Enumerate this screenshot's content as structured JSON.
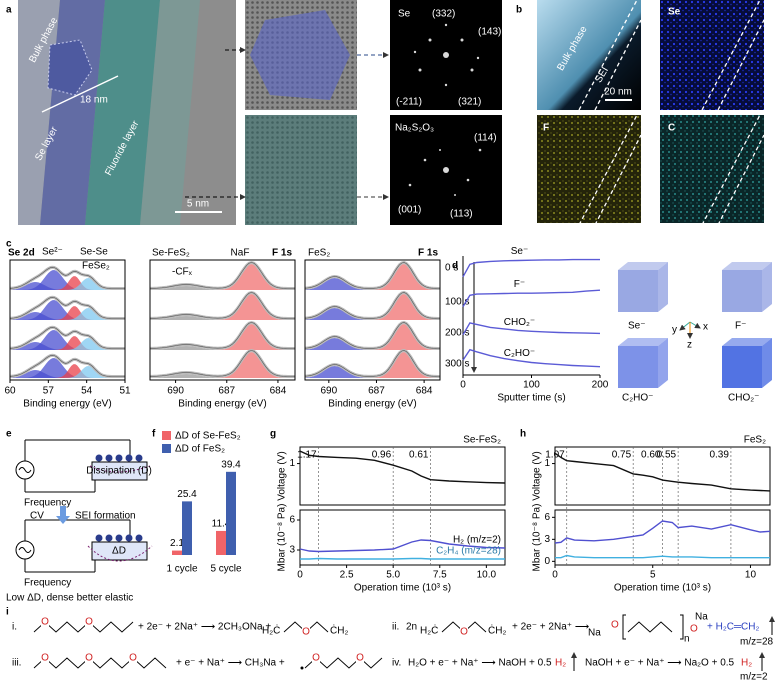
{
  "figure": {
    "panel_labels": [
      "a",
      "b",
      "c",
      "d",
      "e",
      "f",
      "g",
      "h",
      "i"
    ],
    "a": {
      "bulk": "Bulk phase",
      "width": "18 nm",
      "se_layer": "Se layer",
      "f_layer": "Fluoride layer",
      "scale": "5 nm",
      "fft_se": {
        "title": "Se",
        "spots": [
          "(332)",
          "(143)",
          "(-211)",
          "(321)"
        ]
      },
      "fft_na": {
        "title": "Na₂S₂O₃",
        "spots": [
          "(114)",
          "(001)",
          "(113)"
        ]
      }
    },
    "b": {
      "bulk": "Bulk phase",
      "sei": "SEI",
      "scale": "20 nm",
      "maps": [
        "Se",
        "F",
        "C"
      ]
    },
    "c": {
      "se_title": "Se 2d",
      "se_peaks": [
        "Se²⁻",
        "Se-Se",
        "FeSe₂"
      ],
      "sample_1": "Se-FeS₂",
      "naf": "NaF",
      "f1s": "F 1s",
      "cfx": "-CFₓ",
      "sample_2": "FeS₂",
      "times": [
        "0 s",
        "100 s",
        "200 s",
        "300 s"
      ],
      "xlabel": "Binding energy (eV)",
      "axes": [
        {
          "xlim": [
            60,
            51
          ],
          "xticks": [
            60,
            57,
            54,
            51
          ]
        },
        {
          "xlim": [
            691.5,
            683
          ],
          "xticks": [
            690,
            687,
            684
          ]
        },
        {
          "xlim": [
            691.5,
            683
          ],
          "xticks": [
            690,
            687,
            684
          ]
        }
      ]
    },
    "d_cubes": {
      "labels": [
        "Se⁻",
        "F⁻",
        "C₂HO⁻",
        "CHO₂⁻"
      ],
      "axes": [
        "x",
        "y",
        "z"
      ]
    },
    "e": {
      "frequency": "Frequency",
      "dissipation": "Dissipation (D)",
      "cv": "CV",
      "sei": "SEI formation",
      "delta": "ΔD",
      "note": "Low ΔD, dense better elastic"
    },
    "i": {
      "oxygen": "O",
      "r1": {
        "num": "i.",
        "mid": "+ 2e⁻ + 2Na⁺ ⟶ 2CH₃ONa +",
        "rad_l": "H₂Ċ",
        "rad_r": "ĊH₂"
      },
      "r2": {
        "num": "ii.",
        "coef": "2n",
        "mid": "+ 2e⁻ + 2Na⁺ ⟶",
        "na": "Na",
        "n": "n",
        "gas": "+ H₂C═CH₂",
        "mz": "m/z=28"
      },
      "r3": {
        "num": "iii.",
        "mid": "+ e⁻ + Na⁺ ⟶ CH₃Na +"
      },
      "r4": {
        "num": "iv.",
        "eq1": "H₂O + e⁻ + Na⁺ ⟶ NaOH + 0.5",
        "h2": "H₂",
        "eq2": "NaOH + e⁻ + Na⁺ ⟶ Na₂O + 0.5",
        "mz": "m/z=2"
      }
    }
  },
  "chart_data": [
    {
      "type": "line",
      "x": [
        0,
        10,
        20,
        40,
        60,
        80,
        100,
        120,
        140,
        160,
        180,
        200
      ],
      "xlim": [
        0,
        200
      ],
      "xticks": [
        0,
        100,
        200
      ],
      "xlabel": "Sputter time (s)",
      "ylim": [
        0,
        4
      ],
      "series": [
        {
          "name": "Se⁻",
          "color": "#5b5bd6",
          "values": [
            3.3,
            3.72,
            3.78,
            3.82,
            3.84,
            3.85,
            3.86,
            3.87,
            3.87,
            3.88,
            3.88,
            3.88
          ]
        },
        {
          "name": "F⁻",
          "color": "#5b5bd6",
          "values": [
            2.3,
            2.68,
            2.72,
            2.73,
            2.74,
            2.75,
            2.75,
            2.76,
            2.77,
            2.78,
            2.82,
            2.85
          ]
        },
        {
          "name": "CHO₂⁻",
          "color": "#5b5bd6",
          "values": [
            1.35,
            1.75,
            1.7,
            1.6,
            1.55,
            1.5,
            1.47,
            1.45,
            1.43,
            1.42,
            1.41,
            1.4
          ]
        },
        {
          "name": "C₂HO⁻",
          "color": "#5b5bd6",
          "values": [
            0.5,
            0.85,
            0.78,
            0.65,
            0.55,
            0.48,
            0.42,
            0.38,
            0.35,
            0.32,
            0.3,
            0.28
          ]
        }
      ]
    },
    {
      "type": "bar",
      "categories": [
        "1 cycle",
        "5 cycle"
      ],
      "ylim": [
        0,
        45
      ],
      "series": [
        {
          "name": "ΔD of Se-FeS₂",
          "color": "#f06468",
          "values": [
            2.1,
            11.4
          ]
        },
        {
          "name": "ΔD of FeS₂",
          "color": "#3f5fae",
          "values": [
            25.4,
            39.4
          ]
        }
      ]
    },
    {
      "type": "line",
      "title": "Se-FeS₂",
      "x": [
        0,
        0.5,
        1,
        2,
        3,
        4,
        5,
        6,
        6.5,
        7,
        8,
        9,
        10,
        11
      ],
      "xlim": [
        0,
        11
      ],
      "xticks": [
        0,
        2.5,
        {
          "value": 5,
          "label": "5.0"
        },
        7.5,
        {
          "value": 10,
          "label": "10.0"
        }
      ],
      "xlabel": "Operation time (10³ s)",
      "ylim": [
        0,
        1.4
      ],
      "yticks": [
        1
      ],
      "ylabel": "Voltage (V)",
      "y2lim": [
        1.5,
        7
      ],
      "y2ticks": [
        3,
        6
      ],
      "y2label": "Mbar (10⁻⁸ Pa)",
      "markers_x": [
        1,
        5,
        7
      ],
      "marker_values": [
        1.17,
        0.96,
        0.61
      ],
      "series": [
        {
          "color": "#111111",
          "values": [
            1.3,
            1.2,
            1.17,
            1.15,
            1.13,
            1.08,
            0.96,
            0.82,
            0.7,
            0.61,
            0.58,
            0.56,
            0.54,
            0.53
          ]
        },
        {
          "name": "H₂ (m/z=2)",
          "axis": "y2",
          "color": "#5050d0",
          "values": [
            3.1,
            2.9,
            2.85,
            2.9,
            2.95,
            3.0,
            3.1,
            3.8,
            4.0,
            3.95,
            3.6,
            3.4,
            3.25,
            3.2
          ]
        },
        {
          "name": "C₂H₄ (m/z=28)",
          "axis": "y2",
          "color": "#40b0e0",
          "values": [
            2.1,
            2.1,
            2.15,
            2.1,
            2.1,
            2.1,
            2.1,
            2.15,
            2.15,
            2.1,
            2.1,
            2.1,
            2.1,
            2.1
          ]
        }
      ]
    },
    {
      "type": "line",
      "title": "FeS₂",
      "x": [
        0,
        0.3,
        0.6,
        1,
        2,
        3,
        4,
        4.5,
        5,
        5.5,
        6,
        6.3,
        7,
        8,
        9,
        10,
        10.5,
        11
      ],
      "xlim": [
        0,
        11
      ],
      "xticks": [
        0,
        5,
        10
      ],
      "xlabel": "Operation time (10³ s)",
      "ylim": [
        0,
        1.4
      ],
      "yticks": [
        1
      ],
      "ylabel": "Voltage (V)",
      "y2lim": [
        -0.5,
        7
      ],
      "y2ticks": [
        0,
        3,
        6
      ],
      "y2label": "Mbar (10⁻⁸ Pa)",
      "markers_x": [
        0.6,
        4,
        5.5,
        6.3,
        9
      ],
      "marker_values": [
        1.07,
        0.75,
        {
          "value": 0.6,
          "label": "0.60"
        },
        0.55,
        0.39
      ],
      "series": [
        {
          "color": "#111111",
          "values": [
            1.25,
            1.15,
            1.07,
            1.05,
            1.0,
            0.95,
            0.75,
            0.72,
            0.68,
            0.6,
            0.57,
            0.55,
            0.52,
            0.48,
            0.39,
            0.36,
            0.35,
            0.34
          ]
        },
        {
          "axis": "y2",
          "color": "#5050d0",
          "values": [
            2.5,
            2.6,
            3.2,
            2.9,
            2.8,
            3.0,
            3.4,
            3.6,
            4.5,
            5.5,
            5.3,
            4.6,
            4.8,
            4.4,
            5.0,
            4.3,
            4.0,
            4.1
          ]
        },
        {
          "axis": "y2",
          "color": "#40b0e0",
          "values": [
            0.5,
            0.5,
            0.8,
            0.6,
            0.5,
            0.5,
            0.5,
            0.5,
            0.6,
            0.7,
            0.6,
            0.6,
            0.6,
            0.5,
            0.5,
            0.5,
            0.5,
            0.5
          ]
        }
      ]
    }
  ]
}
